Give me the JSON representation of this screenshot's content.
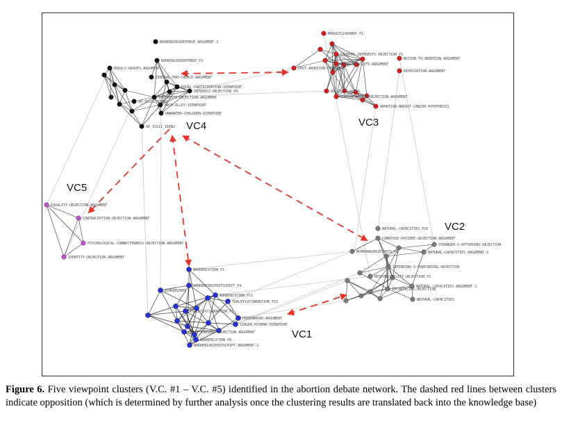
{
  "figure": {
    "caption_label": "Figure 6.",
    "caption_text": " Five viewpoint clusters (V.C. #1 – V.C. #5) identified in the abortion debate network. The dashed red lines between clusters indicate opposition (which is determined by further analysis once the clustering results are translated back into the knowledge base)"
  },
  "colors": {
    "VC1": "#2230d8",
    "VC2": "#7a7a7a",
    "VC3": "#d81c1c",
    "VC4": "#111111",
    "VC5": "#c24fd0",
    "opposition": "#e8322a",
    "intra_edge": "#333333",
    "inter_edge": "#c8c8c8"
  },
  "clusters": [
    {
      "id": "VC1",
      "label": "VC1"
    },
    {
      "id": "VC2",
      "label": "VC2"
    },
    {
      "id": "VC3",
      "label": "VC3"
    },
    {
      "id": "VC4",
      "label": "VC4"
    },
    {
      "id": "VC5",
      "label": "VC5"
    }
  ],
  "nodes": {
    "VC4": [
      {
        "label": "BOONIN2002DEFENSE_ARGUMENT-1"
      },
      {
        "label": "BOONIN2002DEFENSE_P1"
      },
      {
        "label": "BODILY-RIGHTS-ARGUMENT"
      },
      {
        "label": "CENTRAL-PRO-CHOICE-ARGUMENT"
      },
      {
        "label": "EQUAL-PARTICIPATION-VIEWPOINT"
      },
      {
        "label": "INTEREST-OBJECTION_P4"
      },
      {
        "label": "AD_ISS11_VIEW2"
      },
      {
        "label": "INTERESTS-OBJECTION-ARGUMENT"
      },
      {
        "label": "BACK-ALLEY-VIEWPOINT"
      },
      {
        "label": "UNWANTED-CHILDREN-VIEWPOINT"
      },
      {
        "label": "AD_ISS11_VIEW2"
      }
    ],
    "VC3": [
      {
        "label": "MARQUIS1989WHY_P1"
      },
      {
        "label": "COUNTER-INTERESTS-OBJECTION_P1"
      },
      {
        "label": "BASIC-PRO-LIFE-ARGUMENT"
      },
      {
        "label": "NOTION-TO-ABORTION-ARGUMENT"
      },
      {
        "label": "POST-ABORTION-SYNDROME"
      },
      {
        "label": "DEPRIVATION-ARGUMENT"
      },
      {
        "label": "AD_ISS11_VIEW1"
      },
      {
        "label": "CONTRACEPTION-OBJECTION-ARGUMENT"
      },
      {
        "label": "ABORTION-BREAST-CANCER-HYPOTHESIS"
      }
    ],
    "VC5": [
      {
        "label": "EQUALITY-OBJECTION-ARGUMENT"
      },
      {
        "label": "CONTRACEPTION-OBJECTION-ARGUMENT"
      },
      {
        "label": "PSYCHOLOGICAL-CONNECTEDNESS-OBJECTION-ARGUMENT"
      },
      {
        "label": "IDENTITY-OBJECTION-ARGUMENT"
      }
    ],
    "VC2": [
      {
        "label": "NATURAL-CAPACITIES_P10"
      },
      {
        "label": "COMATOSE-PATIENT-OBJECTION-ARGUMENT"
      },
      {
        "label": "STRANGER-V-OFFSPRING-OBJECTION"
      },
      {
        "label": "MCMAHAN2002ETHICS_P1"
      },
      {
        "label": "NATURAL-CAPACITIES_ARGUMENT-2"
      },
      {
        "label": "INTENDING-V-FORESEEING-OBJECTION"
      },
      {
        "label": "RESPONSIBILITY-OBJECTION_P1"
      },
      {
        "label": "NATURAL-CAPACITIES-ARGUMENT-1"
      },
      {
        "label": "INFANTICIDE-OBJECTION"
      },
      {
        "label": "NATURAL-CAPACITIES"
      }
    ],
    "VC1": [
      {
        "label": "WARREN1973ON_P1"
      },
      {
        "label": "WARREN1982POSTSCRIPT_P4"
      },
      {
        "label": "SINGER2000"
      },
      {
        "label": "WARREN1973ON_P11"
      },
      {
        "label": "TOOLEY1972ABORTION_P1"
      },
      {
        "label": "TOOLEY1972ABORTION_P11"
      },
      {
        "label": "PERSONHOOD-ARGUMENT"
      },
      {
        "label": "SINGER-POSMAN-VIEWPOINT"
      },
      {
        "label": "EXACT-CONSENT-OBJECTION-ARGUMENT"
      },
      {
        "label": "WARREN1973ON_P8"
      },
      {
        "label": "WARREN1982POSTSCRIPT_ARGUMENT-2"
      }
    ]
  }
}
